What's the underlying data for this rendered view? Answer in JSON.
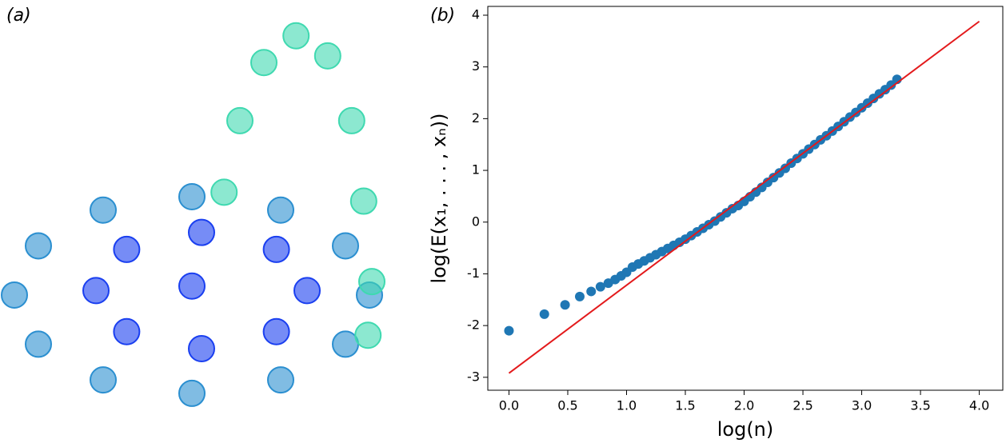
{
  "chart_data": [
    {
      "type": "scatter",
      "label": "(a)",
      "xlim": [
        0,
        100
      ],
      "ylim": [
        0,
        100
      ],
      "series": [
        {
          "color": "#2b8fd0",
          "x": [
            77,
            72,
            58.5,
            40,
            21.5,
            8,
            3,
            8,
            21.5,
            40,
            58.5,
            72
          ],
          "values": [
            34,
            45,
            53,
            56,
            53,
            45,
            34,
            23,
            15,
            12,
            15,
            23
          ]
        },
        {
          "color": "#1a3ff0",
          "x": [
            64,
            57.6,
            42,
            26.4,
            20,
            26.4,
            42,
            57.6,
            40
          ],
          "values": [
            35,
            44.2,
            48,
            44.2,
            35,
            25.8,
            22,
            25.8,
            36
          ]
        },
        {
          "color": "#3fd9b0",
          "x": [
            46.7,
            50,
            55,
            61.7,
            68.3,
            73.3,
            75.8,
            77.5,
            76.7
          ],
          "values": [
            57,
            73,
            86,
            92,
            87.5,
            73,
            55,
            37,
            25
          ]
        }
      ]
    },
    {
      "type": "scatter",
      "label": "(b)",
      "xlabel": "log(n)",
      "ylabel": "log(E(x₁, . . . , xₙ))",
      "xlim": [
        -0.18,
        4.2
      ],
      "ylim": [
        -3.25,
        4.17
      ],
      "xticks": [
        {
          "value": 0,
          "label": "0.0"
        },
        0.5,
        {
          "value": 1,
          "label": "1.0"
        },
        1.5,
        {
          "value": 2,
          "label": "2.0"
        },
        2.5,
        {
          "value": 3,
          "label": "3.0"
        },
        3.5,
        {
          "value": 4,
          "label": "4.0"
        }
      ],
      "yticks": [
        -3,
        -2,
        -1,
        0,
        1,
        2,
        3,
        4
      ],
      "series": [
        {
          "type": "scatter",
          "color": "#1f77b4",
          "x": [
            0,
            0.301,
            0.477,
            0.602,
            0.699,
            0.778,
            0.845,
            0.903,
            0.954,
            1.0,
            1.05,
            1.1,
            1.15,
            1.2,
            1.25,
            1.3,
            1.35,
            1.4,
            1.45,
            1.5,
            1.55,
            1.6,
            1.65,
            1.7,
            1.75,
            1.8,
            1.85,
            1.9,
            1.95,
            2.0,
            2.05,
            2.1,
            2.15,
            2.2,
            2.25,
            2.3,
            2.35,
            2.4,
            2.45,
            2.5,
            2.55,
            2.6,
            2.65,
            2.7,
            2.75,
            2.8,
            2.85,
            2.9,
            2.95,
            3.0,
            3.05,
            3.1,
            3.15,
            3.2,
            3.25,
            3.3
          ],
          "values": [
            -2.1,
            -1.78,
            -1.6,
            -1.44,
            -1.34,
            -1.25,
            -1.18,
            -1.11,
            -1.04,
            -0.97,
            -0.87,
            -0.81,
            -0.75,
            -0.69,
            -0.63,
            -0.57,
            -0.51,
            -0.45,
            -0.39,
            -0.33,
            -0.26,
            -0.19,
            -0.12,
            -0.05,
            0.02,
            0.1,
            0.18,
            0.26,
            0.32,
            0.4,
            0.49,
            0.58,
            0.67,
            0.77,
            0.86,
            0.95,
            1.04,
            1.14,
            1.23,
            1.32,
            1.41,
            1.5,
            1.59,
            1.67,
            1.76,
            1.85,
            1.94,
            2.03,
            2.12,
            2.21,
            2.3,
            2.39,
            2.48,
            2.56,
            2.65,
            2.76
          ]
        },
        {
          "type": "line",
          "color": "#e31a1c",
          "x": [
            0,
            4
          ],
          "values": [
            -2.92,
            3.88
          ]
        }
      ]
    }
  ]
}
